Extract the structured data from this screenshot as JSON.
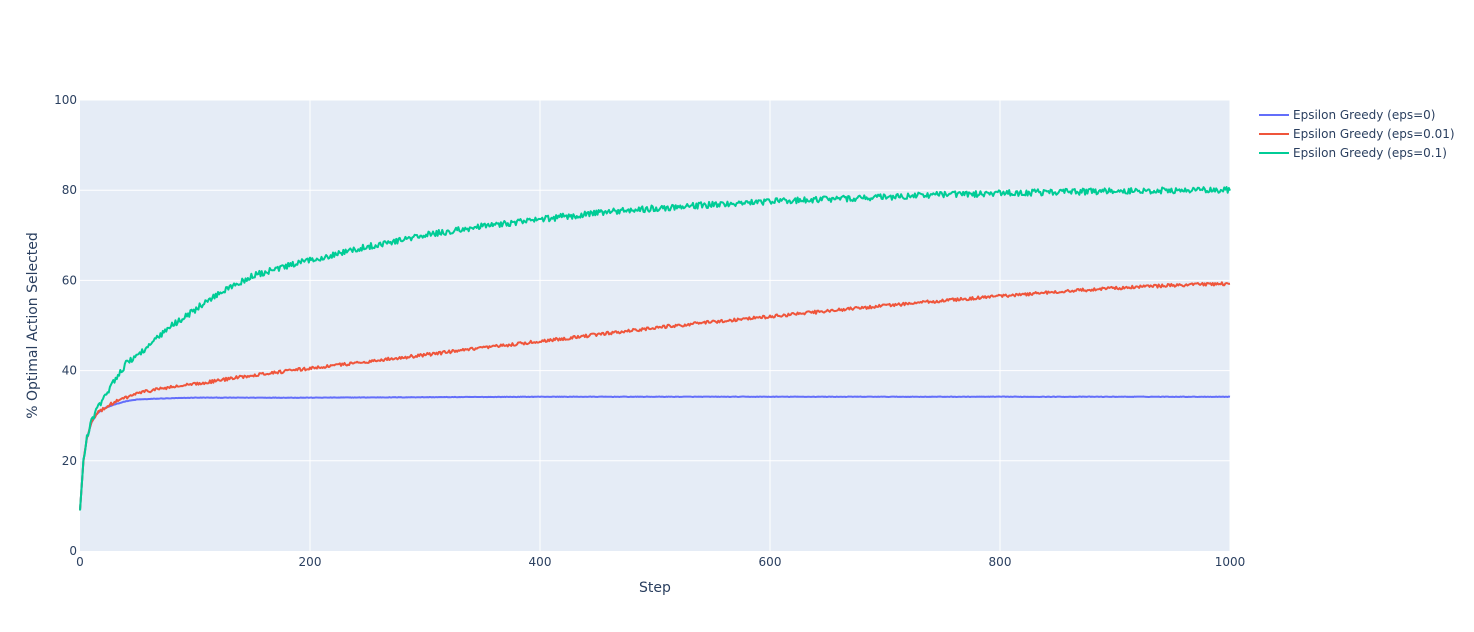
{
  "chart_data": {
    "type": "line",
    "title": "",
    "xlabel": "Step",
    "ylabel": "% Optimal Action Selected",
    "xlim": [
      0,
      1000
    ],
    "ylim": [
      0,
      100
    ],
    "x_ticks": [
      0,
      200,
      400,
      600,
      800,
      1000
    ],
    "y_ticks": [
      0,
      20,
      40,
      60,
      80,
      100
    ],
    "grid": true,
    "legend": "right",
    "background": "#e5ecf6",
    "series": [
      {
        "name": "Epsilon Greedy (eps=0)",
        "color": "#636efa",
        "x": [
          0,
          3,
          6,
          10,
          15,
          20,
          30,
          40,
          50,
          70,
          100,
          150,
          200,
          300,
          400,
          500,
          600,
          700,
          800,
          900,
          1000
        ],
        "y": [
          9,
          20,
          25,
          28.5,
          30.5,
          31.5,
          32.5,
          33.2,
          33.6,
          33.8,
          34.0,
          34.0,
          34.0,
          34.1,
          34.2,
          34.2,
          34.2,
          34.2,
          34.2,
          34.2,
          34.2
        ]
      },
      {
        "name": "Epsilon Greedy (eps=0.01)",
        "color": "#ef553b",
        "x": [
          0,
          3,
          6,
          10,
          15,
          20,
          30,
          40,
          50,
          70,
          100,
          150,
          200,
          250,
          300,
          350,
          400,
          450,
          500,
          550,
          600,
          650,
          700,
          750,
          800,
          850,
          900,
          950,
          1000
        ],
        "y": [
          9,
          20,
          25,
          28.5,
          30.5,
          31.5,
          33,
          34,
          35,
          36,
          37,
          39,
          40.5,
          42,
          43.5,
          45,
          46.5,
          48,
          49.5,
          50.8,
          52,
          53.2,
          54.4,
          55.5,
          56.5,
          57.5,
          58.3,
          58.9,
          59.3
        ]
      },
      {
        "name": "Epsilon Greedy (eps=0.1)",
        "color": "#00cc96",
        "x": [
          0,
          3,
          6,
          10,
          15,
          20,
          30,
          40,
          50,
          60,
          80,
          100,
          120,
          150,
          200,
          250,
          300,
          350,
          400,
          450,
          500,
          550,
          600,
          650,
          700,
          750,
          800,
          850,
          900,
          950,
          1000
        ],
        "y": [
          9,
          20,
          25,
          29,
          31.5,
          33.5,
          38,
          41.5,
          43.5,
          45.5,
          50,
          53.5,
          57,
          61,
          64.5,
          67.5,
          70,
          72,
          73.5,
          75,
          76,
          76.8,
          77.5,
          78,
          78.5,
          79,
          79.3,
          79.6,
          79.8,
          80,
          80
        ]
      }
    ]
  }
}
